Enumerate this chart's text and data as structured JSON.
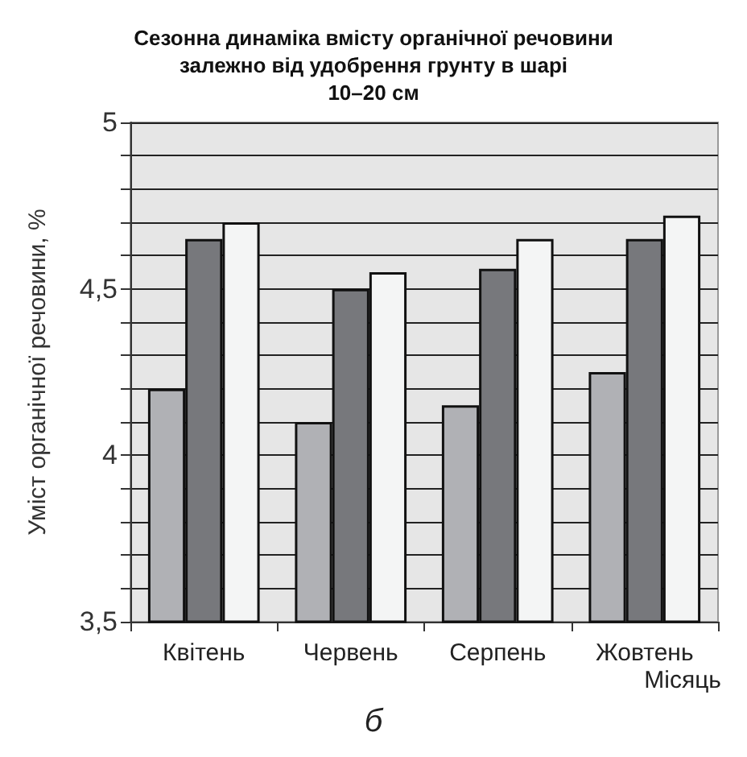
{
  "chart_data": {
    "type": "bar",
    "title": "Сезонна динаміка вмісту органічної речовини\nзалежно від удобрення грунту в шарі\n10–20 см",
    "xlabel": "Місяць",
    "ylabel": "Уміст органічної речовини, %",
    "annotations": [
      "б"
    ],
    "categories": [
      "Квітень",
      "Червень",
      "Серпень",
      "Жовтень"
    ],
    "series": [
      {
        "color": "#b0b1b5",
        "values": [
          4.2,
          4.1,
          4.15,
          4.25
        ]
      },
      {
        "color": "#77787c",
        "values": [
          4.65,
          4.5,
          4.56,
          4.65
        ]
      },
      {
        "color": "#f4f5f5",
        "values": [
          4.7,
          4.55,
          4.65,
          4.72
        ]
      }
    ],
    "ylim": [
      3.5,
      5
    ],
    "yticks": [
      {
        "value": 3.5,
        "label": "3,5"
      },
      {
        "value": 3.6,
        "label": null
      },
      {
        "value": 3.7,
        "label": null
      },
      {
        "value": 3.8,
        "label": null
      },
      {
        "value": 3.9,
        "label": null
      },
      {
        "value": 4,
        "label": "4"
      },
      {
        "value": 4.1,
        "label": null
      },
      {
        "value": 4.2,
        "label": null
      },
      {
        "value": 4.3,
        "label": null
      },
      {
        "value": 4.4,
        "label": null
      },
      {
        "value": 4.5,
        "label": "4,5"
      },
      {
        "value": 4.6,
        "label": null
      },
      {
        "value": 4.7,
        "label": null
      },
      {
        "value": 4.8,
        "label": null
      },
      {
        "value": 4.9,
        "label": null
      },
      {
        "value": 5,
        "label": "5"
      }
    ],
    "grid": "y"
  }
}
